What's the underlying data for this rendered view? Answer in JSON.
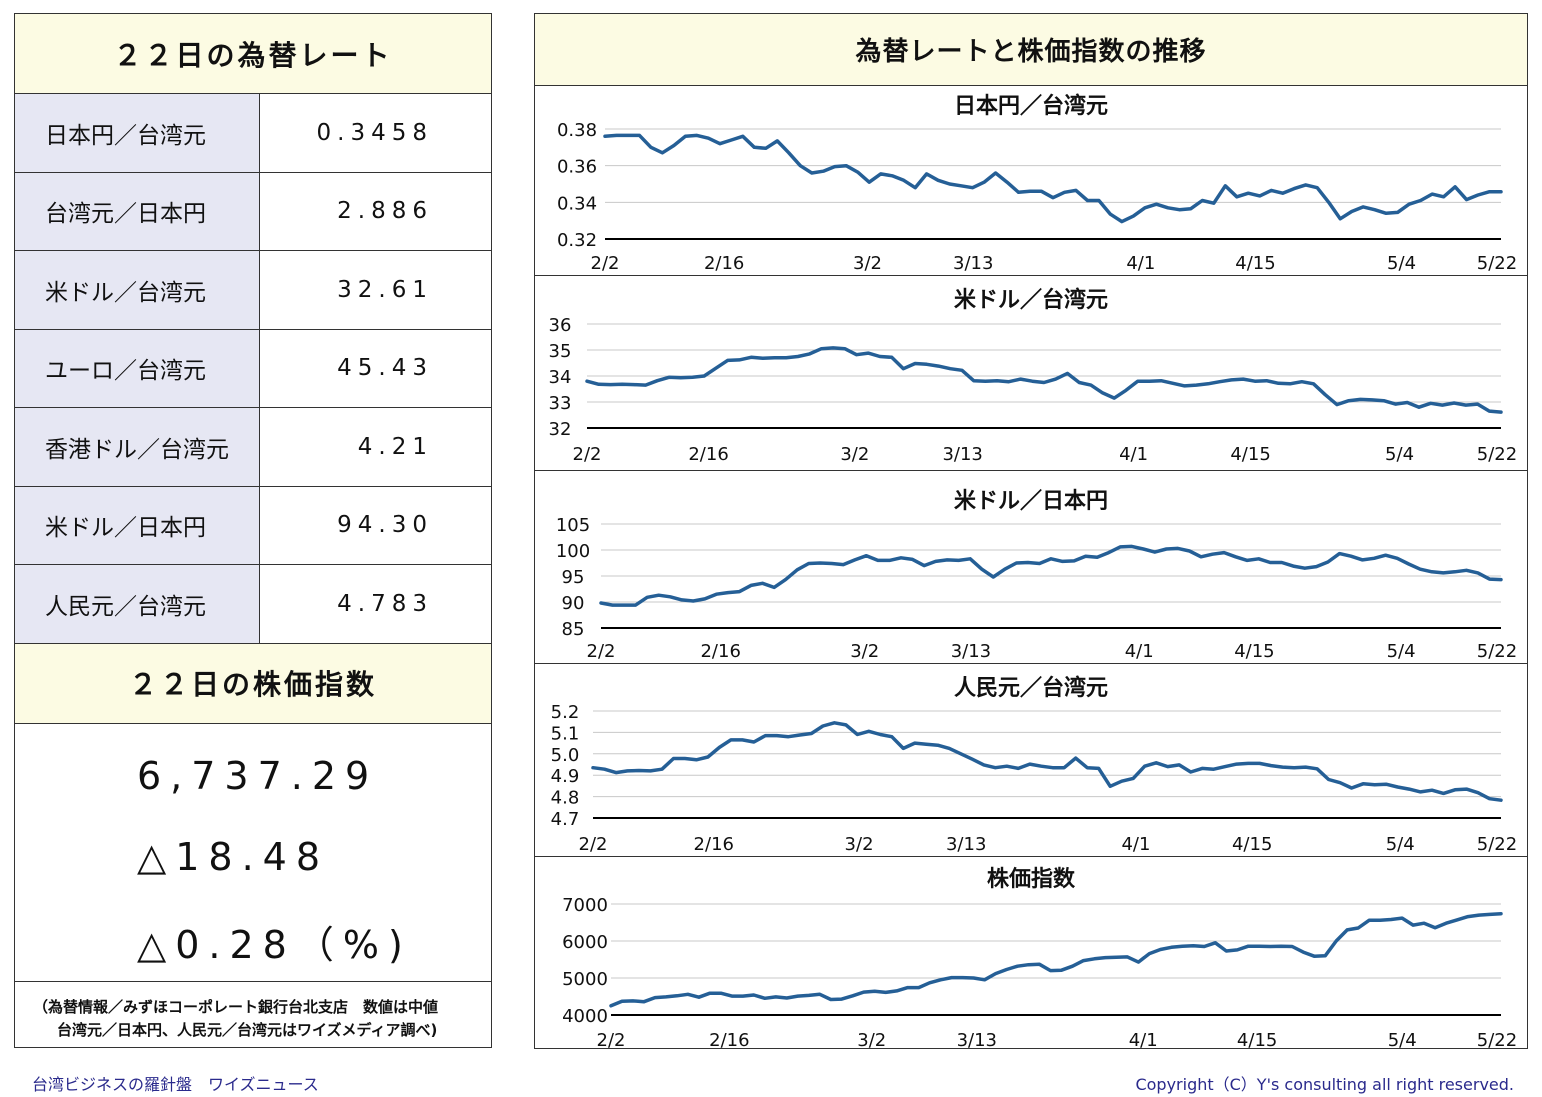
{
  "rates": {
    "title": "２２日の為替レート",
    "rows": [
      {
        "label": "日本円／台湾元",
        "value": "0.3458"
      },
      {
        "label": "台湾元／日本円",
        "value": "2.886"
      },
      {
        "label": "米ドル／台湾元",
        "value": "32.61"
      },
      {
        "label": "ユーロ／台湾元",
        "value": "45.43"
      },
      {
        "label": "香港ドル／台湾元",
        "value": "4.21"
      },
      {
        "label": "米ドル／日本円",
        "value": "94.30"
      },
      {
        "label": "人民元／台湾元",
        "value": "4.783"
      }
    ]
  },
  "stock": {
    "title": "２２日の株価指数",
    "index": "6,737.29",
    "change": "△18.48",
    "change_pct": "△0.28（%)"
  },
  "note": {
    "line1": "（為替情報／みずほコーポレート銀行台北支店　数値は中値",
    "line2": "台湾元／日本円、人民元／台湾元はワイズメディア調べ)"
  },
  "charts_title": "為替レートと株価指数の推移",
  "colors": {
    "line": "#255f96",
    "header_bg": "#fcfbe3",
    "label_bg": "#e6e7f3"
  },
  "chart_data": [
    {
      "type": "line",
      "title": "日本円／台湾元",
      "x_ticks": [
        "2/2",
        "2/16",
        "3/2",
        "3/13",
        "4/1",
        "4/15",
        "5/4",
        "5/22"
      ],
      "y_ticks": [
        "0.32",
        "0.34",
        "0.36",
        "0.38"
      ],
      "ylim": [
        0.32,
        0.38
      ],
      "values": [
        0.376,
        0.3765,
        0.3765,
        0.3765,
        0.37,
        0.367,
        0.371,
        0.376,
        0.3765,
        0.375,
        0.372,
        0.374,
        0.376,
        0.37,
        0.3695,
        0.3735,
        0.367,
        0.36,
        0.356,
        0.357,
        0.3595,
        0.36,
        0.3565,
        0.351,
        0.3555,
        0.3545,
        0.352,
        0.348,
        0.3555,
        0.352,
        0.35,
        0.349,
        0.348,
        0.351,
        0.356,
        0.351,
        0.3455,
        0.346,
        0.346,
        0.3425,
        0.3455,
        0.3465,
        0.341,
        0.341,
        0.3335,
        0.3295,
        0.3325,
        0.337,
        0.339,
        0.337,
        0.336,
        0.3365,
        0.341,
        0.3395,
        0.349,
        0.343,
        0.345,
        0.3435,
        0.3465,
        0.345,
        0.3475,
        0.3495,
        0.348,
        0.34,
        0.331,
        0.335,
        0.3375,
        0.336,
        0.334,
        0.3345,
        0.339,
        0.341,
        0.3445,
        0.343,
        0.3485,
        0.3415,
        0.344,
        0.3458,
        0.3458
      ]
    },
    {
      "type": "line",
      "title": "米ドル／台湾元",
      "x_ticks": [
        "2/2",
        "2/16",
        "3/2",
        "3/13",
        "4/1",
        "4/15",
        "5/4",
        "5/22"
      ],
      "y_ticks": [
        "32",
        "33",
        "34",
        "35",
        "36"
      ],
      "ylim": [
        32,
        36
      ],
      "values": [
        33.8,
        33.68,
        33.67,
        33.68,
        33.67,
        33.65,
        33.82,
        33.95,
        33.93,
        33.95,
        34.0,
        34.3,
        34.6,
        34.62,
        34.72,
        34.68,
        34.7,
        34.7,
        34.75,
        34.85,
        35.05,
        35.08,
        35.05,
        34.82,
        34.88,
        34.75,
        34.72,
        34.28,
        34.48,
        34.45,
        34.38,
        34.28,
        34.22,
        33.82,
        33.8,
        33.82,
        33.78,
        33.88,
        33.8,
        33.75,
        33.88,
        34.1,
        33.75,
        33.65,
        33.35,
        33.15,
        33.45,
        33.8,
        33.8,
        33.82,
        33.72,
        33.62,
        33.65,
        33.7,
        33.78,
        33.85,
        33.88,
        33.8,
        33.82,
        33.72,
        33.7,
        33.78,
        33.7,
        33.28,
        32.9,
        33.05,
        33.1,
        33.08,
        33.05,
        32.92,
        32.98,
        32.8,
        32.95,
        32.88,
        32.96,
        32.88,
        32.92,
        32.65,
        32.61
      ]
    },
    {
      "type": "line",
      "title": "米ドル／日本円",
      "x_ticks": [
        "2/2",
        "2/16",
        "3/2",
        "3/13",
        "4/1",
        "4/15",
        "5/4",
        "5/22"
      ],
      "y_ticks": [
        "85",
        "90",
        "95",
        "100",
        "105"
      ],
      "ylim": [
        85,
        105
      ],
      "values": [
        89.8,
        89.4,
        89.4,
        89.4,
        90.9,
        91.3,
        91.0,
        90.4,
        90.2,
        90.6,
        91.5,
        91.8,
        92.0,
        93.2,
        93.6,
        92.8,
        94.3,
        96.2,
        97.4,
        97.5,
        97.4,
        97.2,
        98.1,
        98.9,
        98.0,
        98.0,
        98.5,
        98.2,
        97.0,
        97.8,
        98.1,
        98.0,
        98.3,
        96.3,
        94.8,
        96.3,
        97.5,
        97.6,
        97.4,
        98.3,
        97.8,
        97.9,
        98.8,
        98.6,
        99.5,
        100.6,
        100.7,
        100.2,
        99.6,
        100.2,
        100.3,
        99.8,
        98.7,
        99.2,
        99.5,
        98.7,
        98.0,
        98.3,
        97.6,
        97.6,
        96.9,
        96.5,
        96.8,
        97.7,
        99.3,
        98.8,
        98.1,
        98.4,
        99.0,
        98.4,
        97.3,
        96.3,
        95.8,
        95.6,
        95.8,
        96.1,
        95.6,
        94.4,
        94.3
      ]
    },
    {
      "type": "line",
      "title": "人民元／台湾元",
      "x_ticks": [
        "2/2",
        "2/16",
        "3/2",
        "3/13",
        "4/1",
        "4/15",
        "5/4",
        "5/22"
      ],
      "y_ticks": [
        "4.7",
        "4.8",
        "4.9",
        "5.0",
        "5.1",
        "5.2"
      ],
      "ylim": [
        4.7,
        5.2
      ],
      "values": [
        4.935,
        4.928,
        4.912,
        4.92,
        4.922,
        4.92,
        4.928,
        4.978,
        4.978,
        4.972,
        4.985,
        5.03,
        5.065,
        5.065,
        5.055,
        5.085,
        5.085,
        5.08,
        5.088,
        5.095,
        5.13,
        5.145,
        5.135,
        5.09,
        5.105,
        5.09,
        5.08,
        5.025,
        5.05,
        5.045,
        5.04,
        5.025,
        5.0,
        4.975,
        4.948,
        4.935,
        4.942,
        4.932,
        4.952,
        4.942,
        4.935,
        4.935,
        4.98,
        4.935,
        4.932,
        4.848,
        4.872,
        4.885,
        4.942,
        4.958,
        4.94,
        4.948,
        4.915,
        4.932,
        4.928,
        4.94,
        4.952,
        4.955,
        4.955,
        4.945,
        4.938,
        4.935,
        4.938,
        4.93,
        4.88,
        4.865,
        4.84,
        4.86,
        4.855,
        4.858,
        4.845,
        4.835,
        4.822,
        4.83,
        4.815,
        4.832,
        4.835,
        4.818,
        4.79,
        4.783
      ]
    },
    {
      "type": "line",
      "title": "株価指数",
      "x_ticks": [
        "2/2",
        "2/16",
        "3/2",
        "3/13",
        "4/1",
        "4/15",
        "5/4",
        "5/22"
      ],
      "y_ticks": [
        "4000",
        "5000",
        "6000",
        "7000"
      ],
      "ylim": [
        4000,
        7000
      ],
      "values": [
        4250,
        4370,
        4380,
        4360,
        4470,
        4490,
        4520,
        4560,
        4480,
        4590,
        4590,
        4510,
        4510,
        4540,
        4450,
        4490,
        4460,
        4510,
        4530,
        4560,
        4420,
        4430,
        4520,
        4620,
        4640,
        4610,
        4650,
        4740,
        4740,
        4870,
        4950,
        5010,
        5010,
        5000,
        4950,
        5120,
        5230,
        5320,
        5360,
        5370,
        5200,
        5210,
        5320,
        5470,
        5520,
        5550,
        5560,
        5570,
        5430,
        5660,
        5770,
        5830,
        5860,
        5870,
        5850,
        5950,
        5730,
        5760,
        5860,
        5860,
        5850,
        5860,
        5850,
        5700,
        5590,
        5600,
        6000,
        6300,
        6350,
        6560,
        6560,
        6580,
        6620,
        6430,
        6480,
        6360,
        6480,
        6570,
        6660,
        6700,
        6720,
        6737
      ]
    }
  ],
  "footer": {
    "left": "台湾ビジネスの羅針盤　ワイズニュース",
    "right": "Copyright（C）Y's consulting all right reserved."
  }
}
